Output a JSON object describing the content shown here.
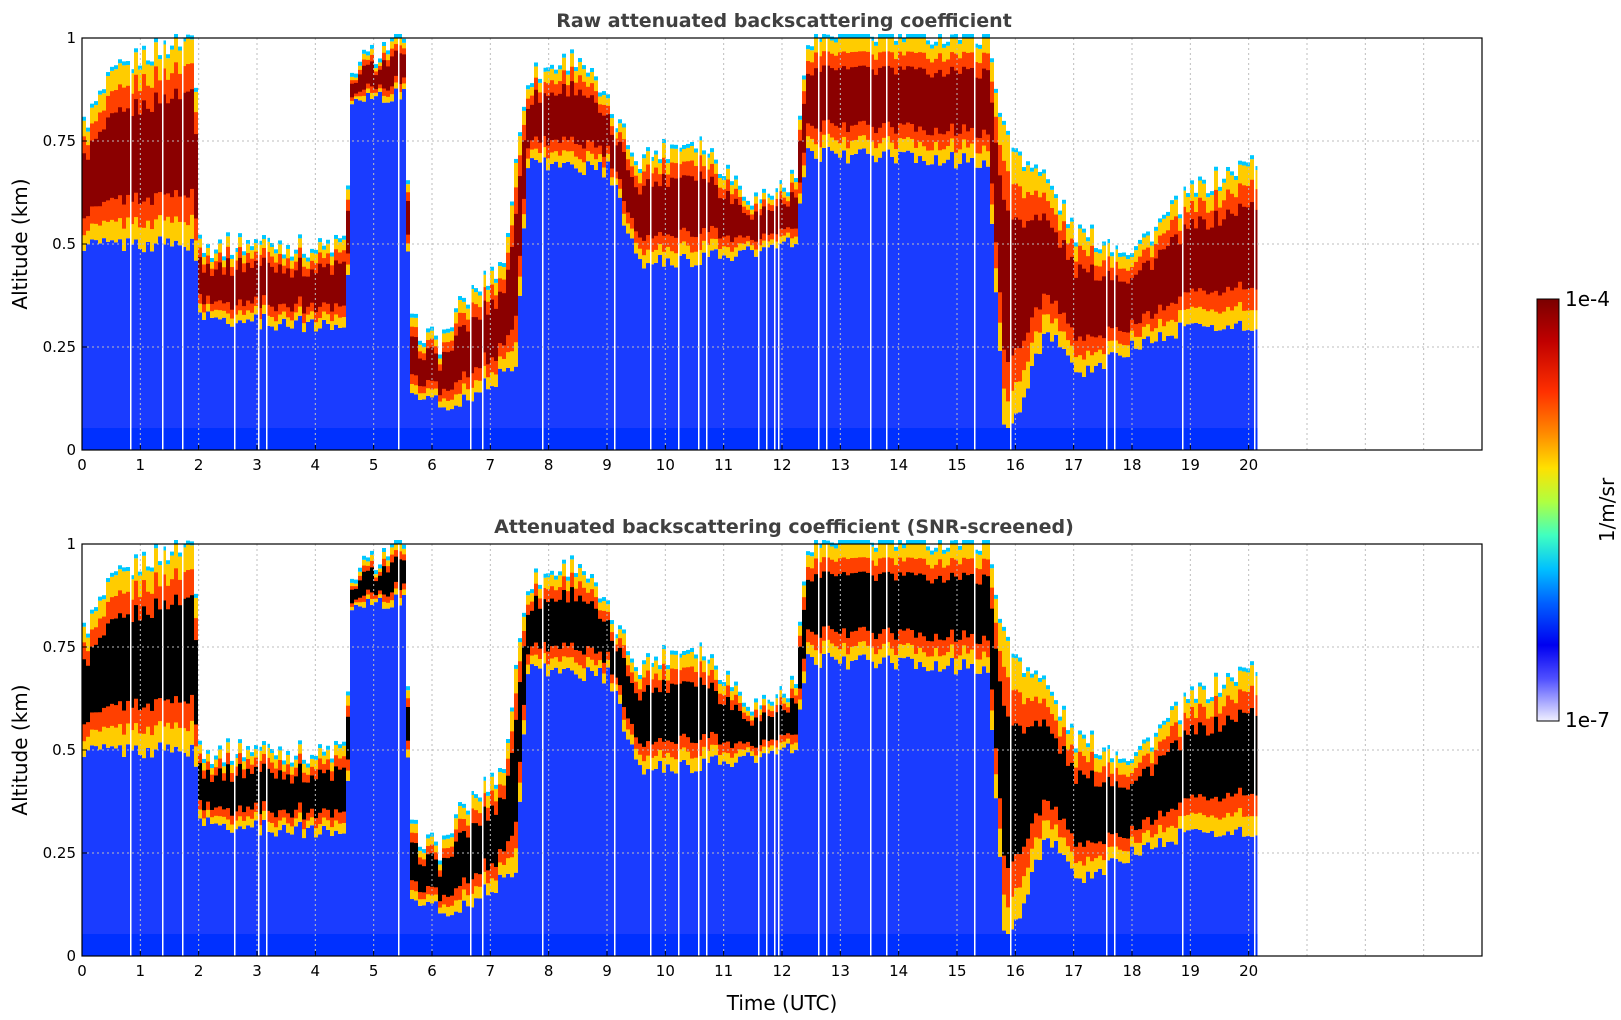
{
  "chart_data": [
    {
      "type": "heatmap",
      "title": "Raw attenuated backscattering coefficient",
      "xlabel": "",
      "ylabel": "Altitude (km)",
      "xlim": [
        0,
        24
      ],
      "ylim": [
        0,
        1
      ],
      "x_ticks": [
        "0",
        "1",
        "2",
        "3",
        "4",
        "5",
        "6",
        "7",
        "8",
        "9",
        "10",
        "11",
        "12",
        "13",
        "14",
        "15",
        "16",
        "17",
        "18",
        "19",
        "20"
      ],
      "y_ticks": [
        "0",
        "0.25",
        "0.5",
        "0.75",
        "1"
      ],
      "data_end_hour": 20.15,
      "screened": false,
      "layers": [
        {
          "from_h": 0.0,
          "to_h": 1.9,
          "base_km": 0.5,
          "top_km": 0.95,
          "intensity": "high"
        },
        {
          "from_h": 2.0,
          "to_h": 4.5,
          "base_km": 0.32,
          "top_km": 0.48,
          "intensity": "high"
        },
        {
          "from_h": 4.3,
          "to_h": 5.6,
          "base_km": 0.86,
          "top_km": 1.0,
          "intensity": "high"
        },
        {
          "from_h": 5.6,
          "to_h": 6.2,
          "base_km": 0.15,
          "top_km": 0.25,
          "intensity": "medium"
        },
        {
          "from_h": 6.2,
          "to_h": 7.5,
          "base_km": 0.1,
          "top_km": 0.3,
          "intensity": "high"
        },
        {
          "from_h": 7.5,
          "to_h": 9.0,
          "base_km": 0.7,
          "top_km": 0.9,
          "intensity": "high"
        },
        {
          "from_h": 9.0,
          "to_h": 11.5,
          "base_km": 0.45,
          "top_km": 0.72,
          "intensity": "high"
        },
        {
          "from_h": 12.3,
          "to_h": 15.6,
          "base_km": 0.7,
          "top_km": 1.0,
          "intensity": "high"
        },
        {
          "from_h": 15.7,
          "to_h": 16.5,
          "base_km": 0.0,
          "top_km": 0.6,
          "intensity": "medium"
        },
        {
          "from_h": 16.5,
          "to_h": 20.15,
          "base_km": 0.28,
          "top_km": 0.45,
          "intensity": "high"
        }
      ]
    },
    {
      "type": "heatmap",
      "title": "Attenuated backscattering coefficient (SNR-screened)",
      "xlabel": "Time (UTC)",
      "ylabel": "Altitude (km)",
      "xlim": [
        0,
        24
      ],
      "ylim": [
        0,
        1
      ],
      "x_ticks": [
        "0",
        "1",
        "2",
        "3",
        "4",
        "5",
        "6",
        "7",
        "8",
        "9",
        "10",
        "11",
        "12",
        "13",
        "14",
        "15",
        "16",
        "17",
        "18",
        "19",
        "20"
      ],
      "y_ticks": [
        "0",
        "0.25",
        "0.5",
        "0.75",
        "1"
      ],
      "data_end_hour": 20.15,
      "screened": true,
      "screened_color": "#000000"
    }
  ],
  "colorbar": {
    "label": "1/m/sr",
    "max_label": "1e-4",
    "min_label": "1e-7",
    "colormap": [
      "#800000",
      "#c00000",
      "#ff2000",
      "#ff7f00",
      "#ffcc00",
      "#e0ff20",
      "#7fff7f",
      "#20ffe0",
      "#00b0ff",
      "#0050ff",
      "#0000f0",
      "#3a3aff",
      "#8888ff",
      "#c8c8f8",
      "#f0f0ff"
    ]
  }
}
